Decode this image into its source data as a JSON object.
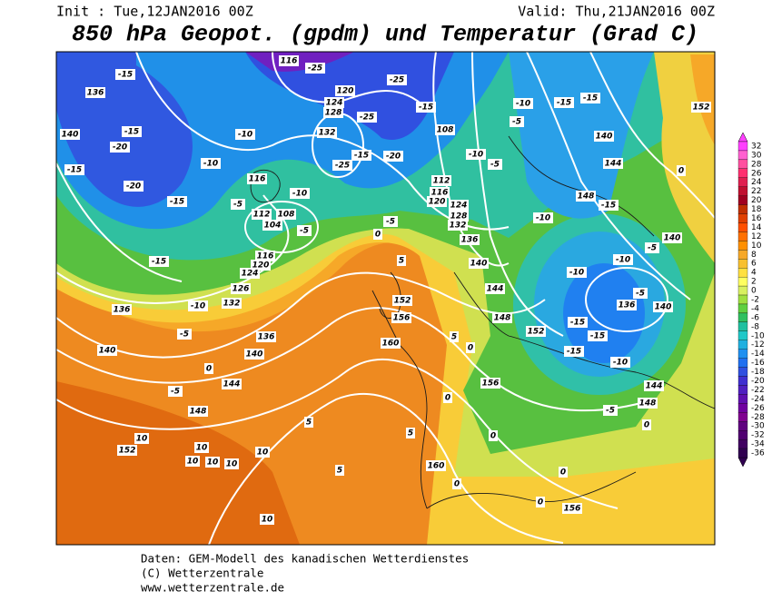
{
  "header": {
    "init": "Init : Tue,12JAN2016 00Z",
    "valid": "Valid: Thu,21JAN2016 00Z",
    "title": "850 hPa Geopot. (gpdm) und Temperatur (Grad C)"
  },
  "colorbar": {
    "values": [
      32,
      30,
      28,
      26,
      24,
      22,
      20,
      18,
      16,
      14,
      12,
      10,
      8,
      6,
      4,
      2,
      0,
      -2,
      -4,
      -6,
      -8,
      -10,
      -12,
      -14,
      -16,
      -18,
      -20,
      -22,
      -24,
      -26,
      -28,
      -30,
      -32,
      -34,
      -36
    ],
    "colors": [
      "#ff40ff",
      "#ff60d0",
      "#ff50a0",
      "#ff3070",
      "#e02050",
      "#c01030",
      "#a00020",
      "#c03000",
      "#e04000",
      "#ff5000",
      "#ff7000",
      "#ff9000",
      "#f6a828",
      "#f8c030",
      "#ffe040",
      "#ffff60",
      "#d8f060",
      "#a0e040",
      "#60d040",
      "#30c060",
      "#20c0a0",
      "#20c8c8",
      "#20b0e0",
      "#2090f0",
      "#2070f0",
      "#3050e0",
      "#4030d0",
      "#5020c0",
      "#6010b0",
      "#7000a0",
      "#800090",
      "#600080",
      "#500070",
      "#400060",
      "#300050"
    ]
  },
  "map_labels": [
    136,
    -15,
    140,
    -15,
    -20,
    -15,
    -20,
    -10,
    -10,
    -15,
    116,
    112,
    108,
    104,
    -5,
    -10,
    -5,
    116,
    120,
    124,
    126,
    132,
    -10,
    136,
    -15,
    -5,
    140,
    136,
    140,
    144,
    148,
    152,
    10,
    10,
    10,
    10,
    10,
    10,
    10,
    0,
    -5,
    5,
    5,
    116,
    -25,
    120,
    124,
    128,
    132,
    -25,
    -15,
    -20,
    -25,
    -25,
    -15,
    108,
    112,
    116,
    120,
    124,
    128,
    132,
    -10,
    -5,
    -10,
    -5,
    -15,
    -15,
    152,
    140,
    144,
    148,
    -15,
    -10,
    0,
    140,
    -5,
    -10,
    -10,
    -5,
    136,
    140,
    -15,
    -15,
    -15,
    -10,
    144,
    148,
    -5,
    0,
    152,
    156,
    148,
    144,
    140,
    136,
    -5,
    0,
    5,
    152,
    156,
    160,
    5,
    0,
    0,
    0,
    5,
    160,
    156,
    0,
    0,
    0
  ],
  "footer": {
    "line1": "Daten: GEM-Modell des kanadischen Wetterdienstes",
    "line2": "(C) Wetterzentrale",
    "line3": "www.wetterzentrale.de"
  }
}
